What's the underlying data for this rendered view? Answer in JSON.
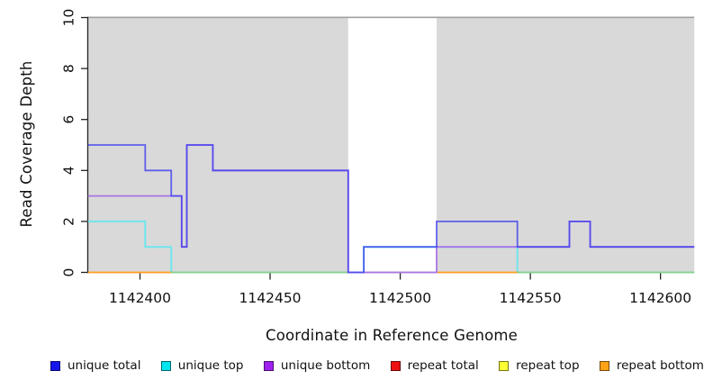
{
  "chart_data": {
    "type": "line",
    "step": "post",
    "title": "",
    "xlabel": "Coordinate in Reference Genome",
    "ylabel": "Read Coverage Depth",
    "xlim": [
      1142380,
      1142613
    ],
    "ylim": [
      0,
      10
    ],
    "x_ticks": [
      1142400,
      1142450,
      1142500,
      1142550,
      1142600
    ],
    "y_ticks": [
      0,
      2,
      4,
      6,
      8,
      10
    ],
    "grid": false,
    "legend_position": "bottom",
    "shading": {
      "color": "#d9d9d9",
      "top_edge_color": "#a0a0a0",
      "regions": [
        [
          1142380,
          1142480
        ],
        [
          1142514,
          1142613
        ]
      ]
    },
    "series": [
      {
        "name": "unique total",
        "legend_color": "#1515EE",
        "line_color": "#4040EE",
        "segments": [
          [
            [
              1142380,
              5
            ],
            [
              1142402,
              4
            ],
            [
              1142412,
              3
            ],
            [
              1142416,
              1
            ],
            [
              1142418,
              5
            ],
            [
              1142428,
              4
            ],
            [
              1142480,
              0
            ],
            [
              1142486,
              1
            ],
            [
              1142514,
              2
            ],
            [
              1142545,
              1
            ],
            [
              1142565,
              2
            ],
            [
              1142573,
              1
            ],
            [
              1142613,
              1
            ]
          ]
        ]
      },
      {
        "name": "unique top",
        "legend_color": "#00E5EE",
        "line_color": "#70E6EC",
        "segments": [
          [
            [
              1142380,
              2
            ],
            [
              1142402,
              1
            ],
            [
              1142412,
              0
            ],
            [
              1142486,
              1
            ],
            [
              1142545,
              0
            ],
            [
              1142613,
              0
            ]
          ]
        ]
      },
      {
        "name": "unique bottom",
        "legend_color": "#A020F0",
        "line_color": "#A875E8",
        "segments": [
          [
            [
              1142380,
              3
            ],
            [
              1142416,
              1
            ],
            [
              1142418,
              5
            ],
            [
              1142428,
              4
            ],
            [
              1142480,
              0
            ],
            [
              1142514,
              1
            ],
            [
              1142565,
              2
            ],
            [
              1142573,
              1
            ],
            [
              1142613,
              1
            ]
          ]
        ]
      },
      {
        "name": "repeat total",
        "legend_color": "#EE1111",
        "line_color": "#CD6B6B",
        "segments": [
          [
            [
              1142486,
              0
            ],
            [
              1142514,
              0
            ]
          ]
        ]
      },
      {
        "name": "repeat top",
        "legend_color": "#FFFF33",
        "line_color": "#8CCF8C",
        "segments": [
          [
            [
              1142412,
              0
            ],
            [
              1142480,
              0
            ]
          ],
          [
            [
              1142545,
              0
            ],
            [
              1142613,
              0
            ]
          ]
        ]
      },
      {
        "name": "repeat bottom",
        "legend_color": "#FFA216",
        "line_color": "#FF9E1C",
        "segments": [
          [
            [
              1142380,
              0
            ],
            [
              1142412,
              0
            ]
          ],
          [
            [
              1142514,
              0
            ],
            [
              1142545,
              0
            ]
          ]
        ]
      }
    ]
  }
}
